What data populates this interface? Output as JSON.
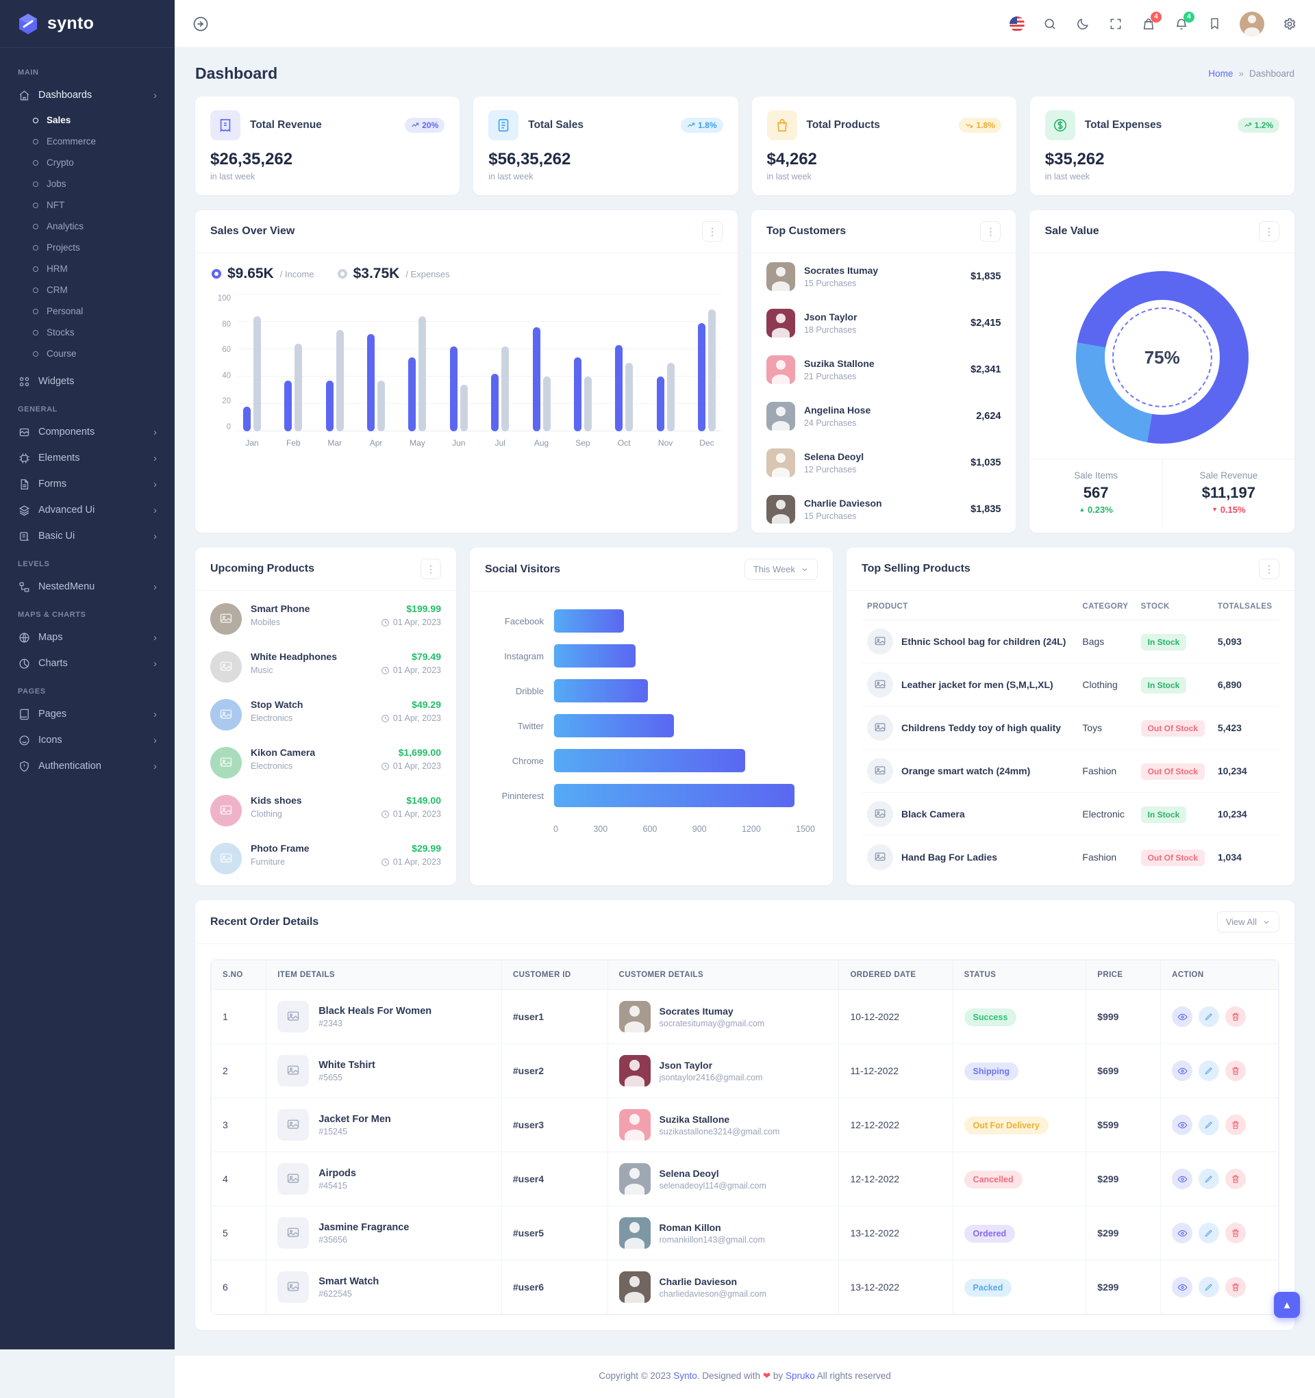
{
  "brand": {
    "name": "synto"
  },
  "topbar": {
    "cart_badge": "4",
    "bell_badge": "4"
  },
  "sidebar": {
    "section_main": "MAIN",
    "dashboards": "Dashboards",
    "dash_children": [
      "Sales",
      "Ecommerce",
      "Crypto",
      "Jobs",
      "NFT",
      "Analytics",
      "Projects",
      "HRM",
      "CRM",
      "Personal",
      "Stocks",
      "Course"
    ],
    "widgets": "Widgets",
    "section_general": "GENERAL",
    "general_items": [
      "Components",
      "Elements",
      "Forms",
      "Advanced Ui",
      "Basic Ui"
    ],
    "section_levels": "LEVELS",
    "nestedmenu": "NestedMenu",
    "section_maps": "MAPS & CHARTS",
    "maps": "Maps",
    "charts": "Charts",
    "section_pages": "PAGES",
    "pages": "Pages",
    "icons": "Icons",
    "authentication": "Authentication"
  },
  "page": {
    "title": "Dashboard",
    "crumb_home": "Home",
    "crumb_sep": "»",
    "crumb_current": "Dashboard"
  },
  "stats": [
    {
      "title": "Total Revenue",
      "value": "$26,35,262",
      "badge": "20%",
      "note": "in last week"
    },
    {
      "title": "Total Sales",
      "value": "$56,35,262",
      "badge": "1.8%",
      "note": "in last week"
    },
    {
      "title": "Total Products",
      "value": "$4,262",
      "badge": "1.8%",
      "note": "in last week"
    },
    {
      "title": "Total Expenses",
      "value": "$35,262",
      "badge": "1.2%",
      "note": "in last week"
    }
  ],
  "sales_overview": {
    "title": "Sales Over View"
  },
  "top_customers": {
    "title": "Top Customers",
    "rows": [
      {
        "name": "Socrates Itumay",
        "sub": "15 Purchases",
        "amount": "$1,835"
      },
      {
        "name": "Json Taylor",
        "sub": "18 Purchases",
        "amount": "$2,415"
      },
      {
        "name": "Suzika Stallone",
        "sub": "21 Purchases",
        "amount": "$2,341"
      },
      {
        "name": "Angelina Hose",
        "sub": "24 Purchases",
        "amount": "2,624"
      },
      {
        "name": "Selena Deoyl",
        "sub": "12 Purchases",
        "amount": "$1,035"
      },
      {
        "name": "Charlie Davieson",
        "sub": "15 Purchases",
        "amount": "$1,835"
      }
    ]
  },
  "sale_value": {
    "title": "Sale Value",
    "percent": "75%",
    "items_label": "Sale Items",
    "items_value": "567",
    "items_delta": "0.23%",
    "revenue_label": "Sale Revenue",
    "revenue_value": "$11,197",
    "revenue_delta": "0.15%"
  },
  "upcoming": {
    "title": "Upcoming Products",
    "rows": [
      {
        "name": "Smart Phone",
        "cat": "Mobiles",
        "price": "$199.99",
        "date": "01 Apr, 2023"
      },
      {
        "name": "White Headphones",
        "cat": "Music",
        "price": "$79.49",
        "date": "01 Apr, 2023"
      },
      {
        "name": "Stop Watch",
        "cat": "Electronics",
        "price": "$49.29",
        "date": "01 Apr, 2023"
      },
      {
        "name": "Kikon Camera",
        "cat": "Electronics",
        "price": "$1,699.00",
        "date": "01 Apr, 2023"
      },
      {
        "name": "Kids shoes",
        "cat": "Clothing",
        "price": "$149.00",
        "date": "01 Apr, 2023"
      },
      {
        "name": "Photo Frame",
        "cat": "Furniture",
        "price": "$29.99",
        "date": "01 Apr, 2023"
      }
    ]
  },
  "social": {
    "title": "Social Visitors",
    "period": "This Week"
  },
  "top_selling": {
    "title": "Top Selling Products",
    "headers": [
      "PRODUCT",
      "CATEGORY",
      "STOCK",
      "TOTALSALES"
    ],
    "rows": [
      {
        "product": "Ethnic School bag for children (24L)",
        "category": "Bags",
        "stock": "In Stock",
        "sales": "5,093"
      },
      {
        "product": "Leather jacket for men (S,M,L,XL)",
        "category": "Clothing",
        "stock": "In Stock",
        "sales": "6,890"
      },
      {
        "product": "Childrens Teddy toy of high quality",
        "category": "Toys",
        "stock": "Out Of Stock",
        "sales": "5,423"
      },
      {
        "product": "Orange smart watch (24mm)",
        "category": "Fashion",
        "stock": "Out Of Stock",
        "sales": "10,234"
      },
      {
        "product": "Black Camera",
        "category": "Electronic",
        "stock": "In Stock",
        "sales": "10,234"
      },
      {
        "product": "Hand Bag For Ladies",
        "category": "Fashion",
        "stock": "Out Of Stock",
        "sales": "1,034"
      }
    ]
  },
  "orders": {
    "title": "Recent Order Details",
    "view_all": "View All",
    "headers": [
      "S.NO",
      "ITEM DETAILS",
      "CUSTOMER ID",
      "CUSTOMER DETAILS",
      "ORDERED DATE",
      "STATUS",
      "PRICE",
      "ACTION"
    ],
    "rows": [
      {
        "sno": "1",
        "item": "Black Heals For Women",
        "code": "#2343",
        "cid": "#user1",
        "customer": "Socrates Itumay",
        "email": "socratesitumay@gmail.com",
        "date": "10-12-2022",
        "status": "Success",
        "price": "$999"
      },
      {
        "sno": "2",
        "item": "White Tshirt",
        "code": "#5655",
        "cid": "#user2",
        "customer": "Json Taylor",
        "email": "jsontaylor2416@gmail.com",
        "date": "11-12-2022",
        "status": "Shipping",
        "price": "$699"
      },
      {
        "sno": "3",
        "item": "Jacket For Men",
        "code": "#15245",
        "cid": "#user3",
        "customer": "Suzika Stallone",
        "email": "suzikastallone3214@gmail.com",
        "date": "12-12-2022",
        "status": "Out For Delivery",
        "price": "$599"
      },
      {
        "sno": "4",
        "item": "Airpods",
        "code": "#45415",
        "cid": "#user4",
        "customer": "Selena Deoyl",
        "email": "selenadeoyl114@gmail.com",
        "date": "12-12-2022",
        "status": "Cancelled",
        "price": "$299"
      },
      {
        "sno": "5",
        "item": "Jasmine Fragrance",
        "code": "#35656",
        "cid": "#user5",
        "customer": "Roman Killon",
        "email": "romankillon143@gmail.com",
        "date": "13-12-2022",
        "status": "Ordered",
        "price": "$299"
      },
      {
        "sno": "6",
        "item": "Smart Watch",
        "code": "#622545",
        "cid": "#user6",
        "customer": "Charlie Davieson",
        "email": "charliedavieson@gmail.com",
        "date": "13-12-2022",
        "status": "Packed",
        "price": "$299"
      }
    ]
  },
  "footer": {
    "pre": "Copyright © 2023",
    "brand": "Synto",
    "mid": ". Designed with",
    "heart": "❤",
    "by": "by",
    "brand2": "Spruko",
    "post": "All rights reserved"
  },
  "chart_data": [
    {
      "type": "bar",
      "title": "Sales Over View",
      "categories": [
        "Jan",
        "Feb",
        "Mar",
        "Apr",
        "May",
        "Jun",
        "Jul",
        "Aug",
        "Sep",
        "Oct",
        "Nov",
        "Dec"
      ],
      "series": [
        {
          "name": "Income",
          "total_label": "$9.65K",
          "color": "#5b67f1",
          "values": [
            18,
            37,
            37,
            71,
            54,
            62,
            42,
            76,
            54,
            63,
            40,
            79
          ]
        },
        {
          "name": "Expenses",
          "total_label": "$3.75K",
          "color": "#ccd3e0",
          "values": [
            84,
            64,
            74,
            37,
            84,
            34,
            62,
            40,
            40,
            50,
            50,
            89
          ]
        }
      ],
      "ylim": [
        0,
        100
      ],
      "yticks": [
        0,
        20,
        40,
        60,
        80,
        100
      ],
      "grid": true,
      "legend_position": "top"
    },
    {
      "type": "bar",
      "orientation": "horizontal",
      "title": "Social Visitors",
      "categories": [
        "Facebook",
        "Instagram",
        "Dribble",
        "Twitter",
        "Chrome",
        "Pininterest"
      ],
      "values": [
        400,
        470,
        540,
        690,
        1100,
        1380
      ],
      "xlim": [
        0,
        1500
      ],
      "xticks": [
        0,
        300,
        600,
        900,
        1200,
        1500
      ],
      "period": "This Week"
    },
    {
      "type": "pie",
      "title": "Sale Value",
      "labels": [
        "Primary",
        "Secondary"
      ],
      "values": [
        75,
        25
      ],
      "colors": [
        "#5b67f1",
        "#59a5f2"
      ],
      "center_label": "75%"
    }
  ]
}
